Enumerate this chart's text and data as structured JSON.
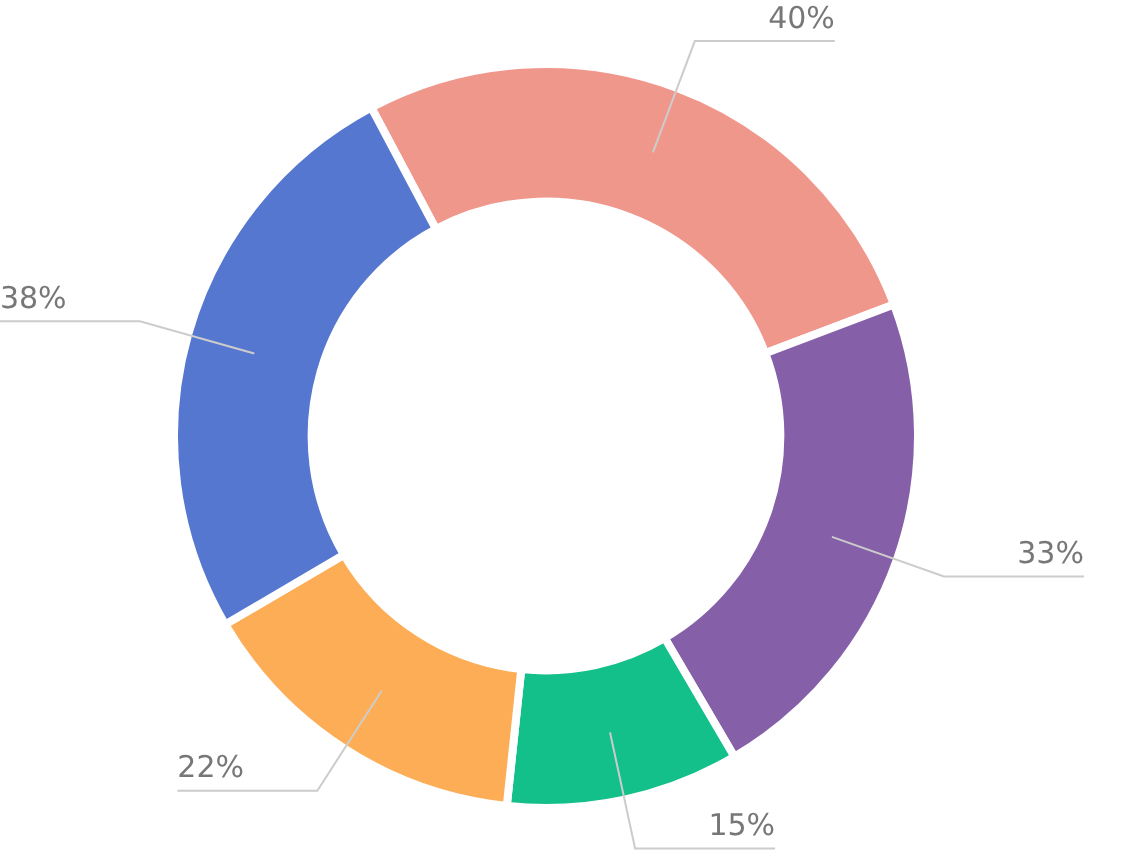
{
  "chart_data": {
    "type": "donut",
    "categories": [
      null,
      null,
      null,
      null,
      null
    ],
    "values": [
      40,
      33,
      15,
      22,
      38
    ],
    "value_labels": [
      "40%",
      "33%",
      "15%",
      "22%",
      "38%"
    ],
    "colors": [
      "#f0978c",
      "#855fa8",
      "#14c08a",
      "#fdad56",
      "#5677cf"
    ],
    "legend": false
  }
}
